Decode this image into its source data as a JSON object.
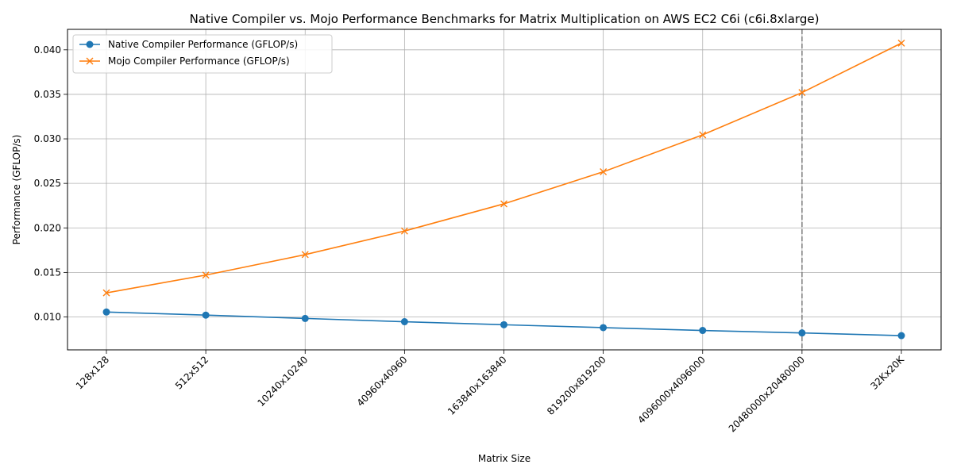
{
  "chart_data": {
    "type": "line",
    "title": "Native Compiler vs. Mojo Performance Benchmarks for Matrix Multiplication on AWS EC2 C6i (c6i.8xlarge)",
    "xlabel": "Matrix Size",
    "ylabel": "Performance (GFLOP/s)",
    "categories": [
      "128x128",
      "512x512",
      "10240x10240",
      "40960x40960",
      "163840x163840",
      "819200x819200",
      "4096000x4096000",
      "20480000x20480000",
      "32Kx20K"
    ],
    "ylim": [
      0.0063,
      0.0423
    ],
    "yticks": [
      "0.010",
      "0.015",
      "0.020",
      "0.025",
      "0.030",
      "0.035",
      "0.040"
    ],
    "grid": true,
    "legend_position": "top-left",
    "vline_category_index": 7,
    "series": [
      {
        "name": "Native Compiler Performance (GFLOP/s)",
        "color": "#1f77b4",
        "marker": "circle",
        "values": [
          0.01055,
          0.0102,
          0.00983,
          0.00946,
          0.00912,
          0.0088,
          0.00848,
          0.0082,
          0.0079
        ]
      },
      {
        "name": "Mojo Compiler Performance (GFLOP/s)",
        "color": "#ff7f0e",
        "marker": "x",
        "values": [
          0.0127,
          0.0147,
          0.017,
          0.01965,
          0.0227,
          0.0263,
          0.03045,
          0.0352,
          0.04075
        ]
      }
    ]
  }
}
